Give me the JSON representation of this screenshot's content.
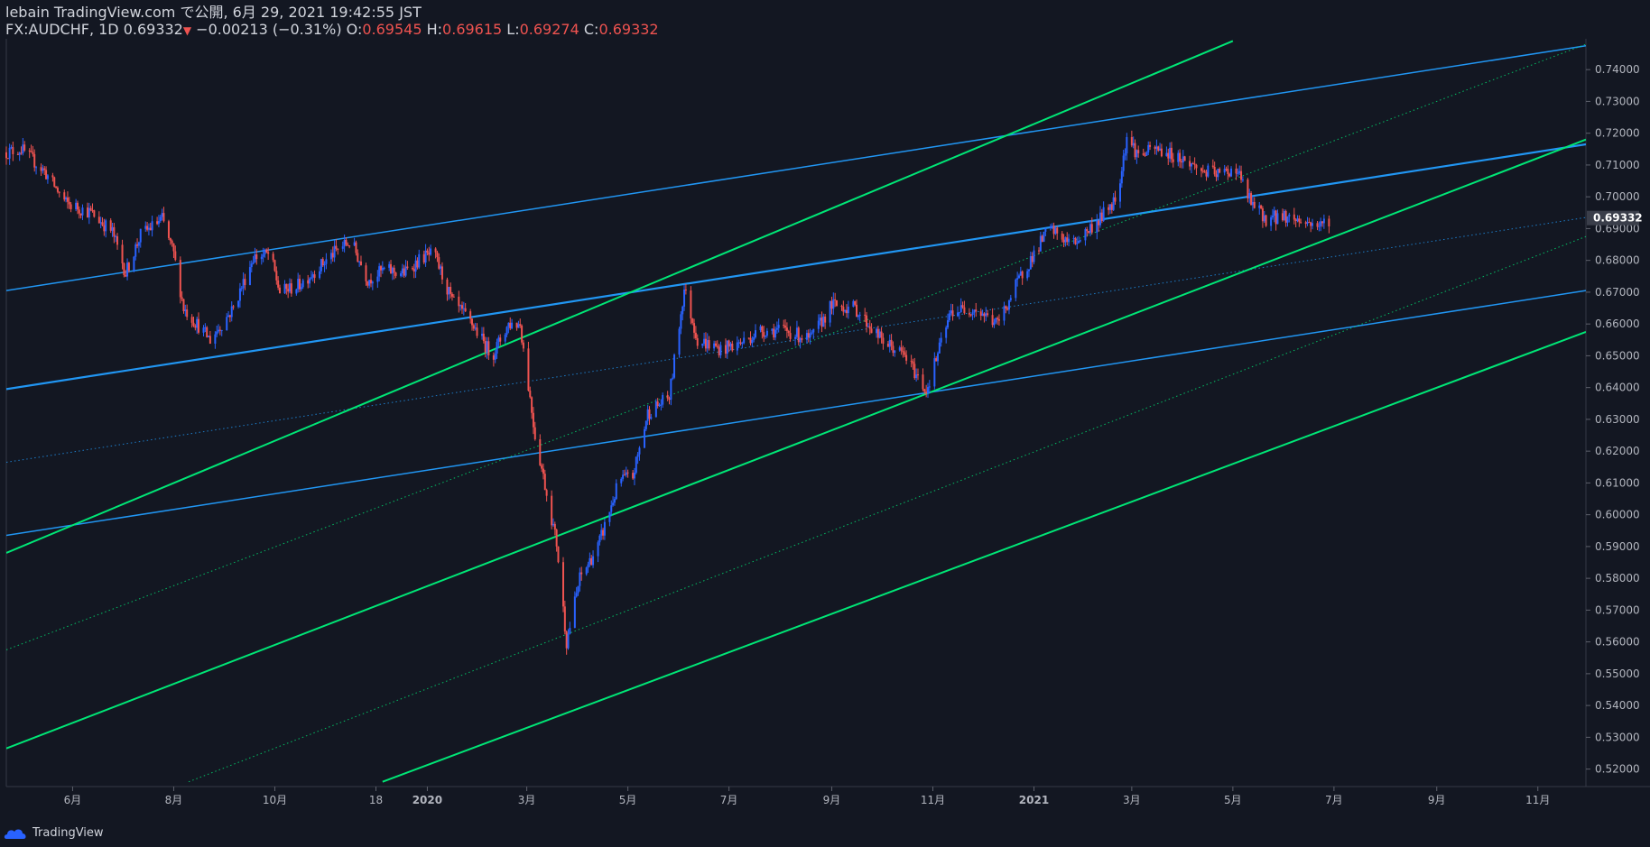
{
  "header": {
    "line1": "lebain TradingView.com で公開, 6月 29, 2021 19:42:55 JST",
    "symbol_prefix": "FX:AUDCHF, 1D 0.69332",
    "down_arrow": "▼",
    "change": " −0.00213 (−0.31%)",
    "o_label": " O:",
    "o_value": "0.69545",
    "h_label": " H:",
    "h_value": "0.69615",
    "l_label": " L:",
    "l_value": "0.69274",
    "c_label": " C:",
    "c_value": "0.69332"
  },
  "footer": {
    "brand": "TradingView",
    "logo_icon": "tradingview-logo-icon"
  },
  "colors": {
    "background": "#131722",
    "up": "#2962ff",
    "down": "#ef5350",
    "channel_blue": "#2196f3",
    "channel_green": "#00e676",
    "axis_text": "#b2b5be",
    "axis_line": "#363a45"
  },
  "chart_data": {
    "type": "candlestick",
    "symbol": "FX:AUDCHF",
    "interval": "1D",
    "last_price": 0.69332,
    "x_ticks": [
      "6月",
      "8月",
      "10月",
      "18",
      "2020",
      "3月",
      "5月",
      "7月",
      "9月",
      "11月",
      "2021",
      "3月",
      "5月",
      "7月",
      "9月",
      "11月"
    ],
    "y_ticks": [
      "0.74000",
      "0.73000",
      "0.72000",
      "0.71000",
      "0.70000",
      "0.69000",
      "0.68000",
      "0.67000",
      "0.66000",
      "0.65000",
      "0.64000",
      "0.63000",
      "0.62000",
      "0.61000",
      "0.60000",
      "0.59000",
      "0.58000",
      "0.57000",
      "0.56000",
      "0.55000",
      "0.54000",
      "0.53000",
      "0.52000"
    ],
    "y_range": [
      0.5145,
      0.7497
    ],
    "price_path": [
      {
        "date": "2019-04-22",
        "close": 0.714
      },
      {
        "date": "2019-05-01",
        "close": 0.715
      },
      {
        "date": "2019-05-15",
        "close": 0.708
      },
      {
        "date": "2019-05-28",
        "close": 0.698
      },
      {
        "date": "2019-06-12",
        "close": 0.695
      },
      {
        "date": "2019-06-25",
        "close": 0.689
      },
      {
        "date": "2019-07-03",
        "close": 0.676
      },
      {
        "date": "2019-07-12",
        "close": 0.688
      },
      {
        "date": "2019-07-25",
        "close": 0.693
      },
      {
        "date": "2019-08-01",
        "close": 0.682
      },
      {
        "date": "2019-08-07",
        "close": 0.665
      },
      {
        "date": "2019-08-23",
        "close": 0.655
      },
      {
        "date": "2019-09-06",
        "close": 0.665
      },
      {
        "date": "2019-09-18",
        "close": 0.681
      },
      {
        "date": "2019-09-28",
        "close": 0.682
      },
      {
        "date": "2019-10-04",
        "close": 0.67
      },
      {
        "date": "2019-10-15",
        "close": 0.672
      },
      {
        "date": "2019-10-30",
        "close": 0.679
      },
      {
        "date": "2019-11-09",
        "close": 0.684
      },
      {
        "date": "2019-11-16",
        "close": 0.686
      },
      {
        "date": "2019-11-26",
        "close": 0.674
      },
      {
        "date": "2019-12-06",
        "close": 0.677
      },
      {
        "date": "2019-12-18",
        "close": 0.676
      },
      {
        "date": "2019-12-29",
        "close": 0.681
      },
      {
        "date": "2020-01-05",
        "close": 0.682
      },
      {
        "date": "2020-01-16",
        "close": 0.667
      },
      {
        "date": "2020-01-28",
        "close": 0.66
      },
      {
        "date": "2020-02-09",
        "close": 0.65
      },
      {
        "date": "2020-02-19",
        "close": 0.66
      },
      {
        "date": "2020-02-26",
        "close": 0.66
      },
      {
        "date": "2020-03-06",
        "close": 0.625
      },
      {
        "date": "2020-03-11",
        "close": 0.612
      },
      {
        "date": "2020-03-19",
        "close": 0.591
      },
      {
        "date": "2020-03-25",
        "close": 0.56
      },
      {
        "date": "2020-04-02",
        "close": 0.58
      },
      {
        "date": "2020-04-13",
        "close": 0.59
      },
      {
        "date": "2020-04-26",
        "close": 0.611
      },
      {
        "date": "2020-05-04",
        "close": 0.612
      },
      {
        "date": "2020-05-13",
        "close": 0.632
      },
      {
        "date": "2020-05-26",
        "close": 0.637
      },
      {
        "date": "2020-06-04",
        "close": 0.671
      },
      {
        "date": "2020-06-12",
        "close": 0.655
      },
      {
        "date": "2020-06-26",
        "close": 0.652
      },
      {
        "date": "2020-07-08",
        "close": 0.654
      },
      {
        "date": "2020-07-20",
        "close": 0.658
      },
      {
        "date": "2020-08-04",
        "close": 0.658
      },
      {
        "date": "2020-08-19",
        "close": 0.655
      },
      {
        "date": "2020-09-01",
        "close": 0.666
      },
      {
        "date": "2020-09-15",
        "close": 0.665
      },
      {
        "date": "2020-10-01",
        "close": 0.655
      },
      {
        "date": "2020-10-15",
        "close": 0.65
      },
      {
        "date": "2020-10-28",
        "close": 0.639
      },
      {
        "date": "2020-11-12",
        "close": 0.664
      },
      {
        "date": "2020-11-26",
        "close": 0.665
      },
      {
        "date": "2020-12-10",
        "close": 0.66
      },
      {
        "date": "2020-12-24",
        "close": 0.675
      },
      {
        "date": "2021-01-10",
        "close": 0.69
      },
      {
        "date": "2021-01-24",
        "close": 0.685
      },
      {
        "date": "2021-02-08",
        "close": 0.692
      },
      {
        "date": "2021-02-20",
        "close": 0.7
      },
      {
        "date": "2021-02-26",
        "close": 0.719
      },
      {
        "date": "2021-03-05",
        "close": 0.713
      },
      {
        "date": "2021-03-16",
        "close": 0.715
      },
      {
        "date": "2021-03-31",
        "close": 0.712
      },
      {
        "date": "2021-04-13",
        "close": 0.708
      },
      {
        "date": "2021-04-23",
        "close": 0.707
      },
      {
        "date": "2021-05-03",
        "close": 0.709
      },
      {
        "date": "2021-05-12",
        "close": 0.698
      },
      {
        "date": "2021-05-21",
        "close": 0.693
      },
      {
        "date": "2021-06-01",
        "close": 0.694
      },
      {
        "date": "2021-06-14",
        "close": 0.692
      },
      {
        "date": "2021-06-23",
        "close": 0.691
      },
      {
        "date": "2021-06-29",
        "close": 0.6933
      }
    ],
    "lines": [
      {
        "color": "blue",
        "style": "solid",
        "width": 1.5,
        "from": {
          "date": "2019-04-22",
          "price": 0.6705
        },
        "to": {
          "date": "2021-11-30",
          "price": 0.7475
        }
      },
      {
        "color": "blue",
        "style": "solid",
        "width": 2.2,
        "from": {
          "date": "2019-04-22",
          "price": 0.6395
        },
        "to": {
          "date": "2021-11-30",
          "price": 0.7165
        }
      },
      {
        "color": "blue",
        "style": "dotted",
        "width": 1,
        "from": {
          "date": "2019-04-22",
          "price": 0.6165
        },
        "to": {
          "date": "2021-11-30",
          "price": 0.6935
        }
      },
      {
        "color": "blue",
        "style": "solid",
        "width": 1.5,
        "from": {
          "date": "2019-04-22",
          "price": 0.5935
        },
        "to": {
          "date": "2021-11-30",
          "price": 0.6705
        }
      },
      {
        "color": "green",
        "style": "solid",
        "width": 2,
        "from": {
          "date": "2019-04-22",
          "price": 0.588
        },
        "to": {
          "date": "2021-05-01",
          "price": 0.749
        }
      },
      {
        "color": "green",
        "style": "dotted",
        "width": 1,
        "from": {
          "date": "2019-04-22",
          "price": 0.5575
        },
        "to": {
          "date": "2021-11-30",
          "price": 0.748
        }
      },
      {
        "color": "green",
        "style": "solid",
        "width": 2,
        "from": {
          "date": "2019-04-22",
          "price": 0.5265
        },
        "to": {
          "date": "2021-11-30",
          "price": 0.718
        }
      },
      {
        "color": "green",
        "style": "dotted",
        "width": 1,
        "from": {
          "date": "2019-08-10",
          "price": 0.516
        },
        "to": {
          "date": "2021-11-30",
          "price": 0.6875
        }
      },
      {
        "color": "green",
        "style": "solid",
        "width": 2,
        "from": {
          "date": "2019-12-05",
          "price": 0.516
        },
        "to": {
          "date": "2021-11-30",
          "price": 0.6575
        }
      }
    ]
  }
}
